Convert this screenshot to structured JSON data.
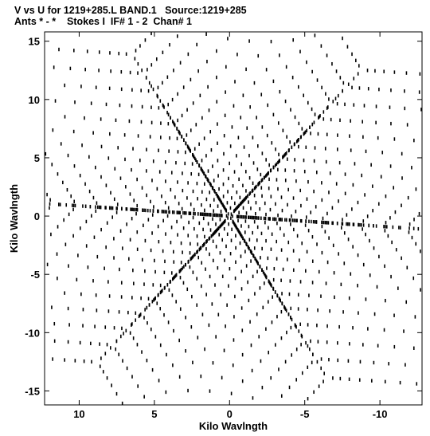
{
  "header": {
    "line1": "V vs U for 1219+285.L BAND.1   Source:1219+285",
    "line2": "Ants * - *    Stokes I  IF# 1 - 2  Chan# 1"
  },
  "chart_data": {
    "type": "scatter",
    "title": "V vs U for 1219+285.L BAND.1   Source:1219+285",
    "subtitle": "Ants * - *    Stokes I  IF# 1 - 2  Chan# 1",
    "xlabel": "Kilo Wavlngth",
    "ylabel": "Kilo Wavlngth",
    "xlim": [
      12.3,
      -12.8
    ],
    "ylim": [
      -16.2,
      15.8
    ],
    "x_axis_reversed": true,
    "grid": false,
    "legend": "none",
    "x_ticks": [
      10,
      5,
      0,
      -5,
      -10
    ],
    "x_tick_labels": [
      "10",
      "5",
      "0",
      "-5",
      "-10"
    ],
    "y_ticks": [
      15,
      10,
      5,
      0,
      -5,
      -10,
      -15
    ],
    "y_tick_labels": [
      "15",
      "10",
      "5",
      "0",
      "-5",
      "-10",
      "-15"
    ],
    "pattern": {
      "description_shape": "six-armed star uv coverage",
      "arm_angles_deg": [
        5,
        125,
        245
      ],
      "arm_radii_kilo_wavelength": [
        0.4,
        0.9,
        1.5,
        2.2,
        3.0,
        3.9,
        4.9,
        6.0,
        7.3,
        8.7,
        10.2,
        11.8,
        13.5,
        15.3
      ],
      "cross_baseline_count": 12
    },
    "mark_color": "#000000"
  }
}
